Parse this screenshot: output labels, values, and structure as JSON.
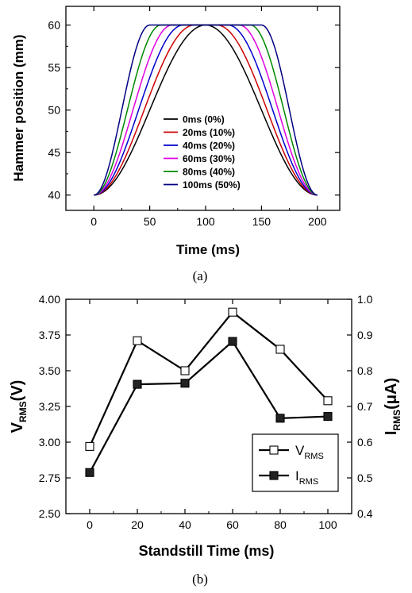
{
  "captions": {
    "a": "(a)",
    "b": "(b)"
  },
  "chart_data": [
    {
      "type": "line",
      "xlabel": "Time (ms)",
      "ylabel": "Hammer position (mm)",
      "xlim": [
        -25,
        220
      ],
      "ylim": [
        38.2,
        62.2
      ],
      "xticks": [
        0,
        50,
        100,
        150,
        200
      ],
      "yticks": [
        40,
        45,
        50,
        55,
        60
      ],
      "legend_position": "center",
      "series": [
        {
          "name": "0ms (0%)",
          "color": "#000000",
          "dwell_ms": 0,
          "min": 40,
          "max": 60,
          "start_ms": 0,
          "end_ms": 200
        },
        {
          "name": "20ms (10%)",
          "color": "#cc0000",
          "dwell_ms": 20,
          "min": 40,
          "max": 60,
          "start_ms": 0,
          "end_ms": 200
        },
        {
          "name": "40ms (20%)",
          "color": "#0000cc",
          "dwell_ms": 40,
          "min": 40,
          "max": 60,
          "start_ms": 0,
          "end_ms": 200
        },
        {
          "name": "60ms (30%)",
          "color": "#e000e0",
          "dwell_ms": 60,
          "min": 40,
          "max": 60,
          "start_ms": 0,
          "end_ms": 200
        },
        {
          "name": "80ms (40%)",
          "color": "#008800",
          "dwell_ms": 80,
          "min": 40,
          "max": 60,
          "start_ms": 0,
          "end_ms": 200
        },
        {
          "name": "100ms (50%)",
          "color": "#000080",
          "dwell_ms": 100,
          "min": 40,
          "max": 60,
          "start_ms": 0,
          "end_ms": 200
        }
      ]
    },
    {
      "type": "line",
      "xlabel": "Standstill Time (ms)",
      "ylabel_main": "V",
      "ylabel_sub": "RMS",
      "ylabel_tail": "(V)",
      "y2label_main": "I",
      "y2label_sub": "RMS",
      "y2label_tail": "(μA)",
      "xlim": [
        -10,
        110
      ],
      "ylim": [
        2.5,
        4.0
      ],
      "y2lim": [
        0.4,
        1.0
      ],
      "xticks": [
        "0",
        "20",
        "40",
        "60",
        "80",
        "100"
      ],
      "yticks": [
        "2.50",
        "2.75",
        "3.00",
        "3.25",
        "3.50",
        "3.75",
        "4.00"
      ],
      "y2ticks": [
        "0.4",
        "0.5",
        "0.6",
        "0.7",
        "0.8",
        "0.9",
        "1.0"
      ],
      "legend_position": "bottom-right",
      "x": [
        0,
        20,
        40,
        60,
        80,
        100
      ],
      "series": [
        {
          "name_main": "V",
          "name_sub": "RMS",
          "axis": "left",
          "marker": "open-square",
          "values": [
            2.97,
            3.71,
            3.5,
            3.91,
            3.65,
            3.29
          ]
        },
        {
          "name_main": "I",
          "name_sub": "RMS",
          "axis": "right",
          "marker": "filled-square",
          "values": [
            0.515,
            0.762,
            0.765,
            0.882,
            0.667,
            0.672
          ]
        }
      ]
    }
  ]
}
